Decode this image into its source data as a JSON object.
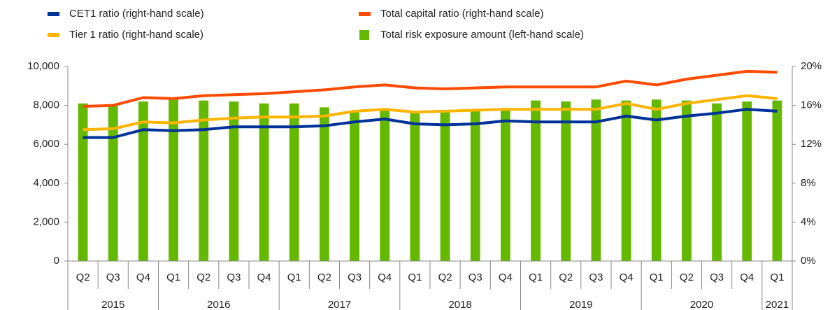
{
  "chart_data": {
    "type": "bar",
    "categories": [
      "Q2",
      "Q3",
      "Q4",
      "Q1",
      "Q2",
      "Q3",
      "Q4",
      "Q1",
      "Q2",
      "Q3",
      "Q4",
      "Q1",
      "Q2",
      "Q3",
      "Q4",
      "Q1",
      "Q2",
      "Q3",
      "Q4",
      "Q1",
      "Q2",
      "Q3",
      "Q4",
      "Q1"
    ],
    "years": [
      "2015",
      null,
      null,
      "2016",
      null,
      null,
      null,
      "2017",
      null,
      null,
      null,
      "2018",
      null,
      null,
      null,
      "2019",
      null,
      null,
      null,
      "2020",
      null,
      null,
      null,
      "2021"
    ],
    "series": [
      {
        "name": "CET1 ratio (right-hand scale)",
        "type": "line",
        "axis": "y2",
        "color": "#003299",
        "values": [
          12.7,
          12.7,
          13.5,
          13.4,
          13.5,
          13.8,
          13.8,
          13.8,
          13.9,
          14.3,
          14.6,
          14.1,
          14.0,
          14.1,
          14.4,
          14.3,
          14.3,
          14.3,
          14.9,
          14.5,
          14.9,
          15.2,
          15.6,
          15.4
        ]
      },
      {
        "name": "Tier 1 ratio (right-hand scale)",
        "type": "line",
        "axis": "y2",
        "color": "#ffb400",
        "values": [
          13.5,
          13.6,
          14.3,
          14.2,
          14.5,
          14.7,
          14.8,
          14.8,
          14.9,
          15.4,
          15.6,
          15.3,
          15.4,
          15.5,
          15.6,
          15.6,
          15.6,
          15.6,
          16.2,
          15.6,
          16.2,
          16.6,
          17.0,
          16.7
        ]
      },
      {
        "name": "Total capital ratio (right-hand scale)",
        "type": "line",
        "axis": "y2",
        "color": "#ff4b00",
        "values": [
          15.9,
          16.0,
          16.8,
          16.7,
          17.0,
          17.1,
          17.2,
          17.4,
          17.6,
          17.9,
          18.1,
          17.8,
          17.7,
          17.8,
          17.9,
          17.9,
          17.9,
          17.9,
          18.5,
          18.1,
          18.7,
          19.1,
          19.5,
          19.4
        ]
      },
      {
        "name": "Total risk exposure amount (left-hand scale)",
        "type": "bar",
        "axis": "y",
        "color": "#65b800",
        "values": [
          8100,
          8000,
          8200,
          8300,
          8250,
          8200,
          8100,
          8100,
          7900,
          7700,
          7750,
          7700,
          7700,
          7700,
          7800,
          8250,
          8200,
          8300,
          8250,
          8300,
          8250,
          8100,
          8200,
          8250
        ]
      }
    ],
    "ylim": [
      0,
      10000
    ],
    "yticks": [
      0,
      {
        "value": 2000,
        "label": "2,000"
      },
      {
        "value": 4000,
        "label": "4,000"
      },
      {
        "value": 6000,
        "label": "6,000"
      },
      {
        "value": 8000,
        "label": "8,000"
      },
      {
        "value": 10000,
        "label": "10,000"
      }
    ],
    "y2lim": [
      0,
      20
    ],
    "y2ticks": [
      {
        "value": 0,
        "label": "0%"
      },
      {
        "value": 4,
        "label": "4%"
      },
      {
        "value": 8,
        "label": "8%"
      },
      {
        "value": 12,
        "label": "12%"
      },
      {
        "value": 16,
        "label": "16%"
      },
      {
        "value": 20,
        "label": "20%"
      }
    ],
    "grid": false
  }
}
